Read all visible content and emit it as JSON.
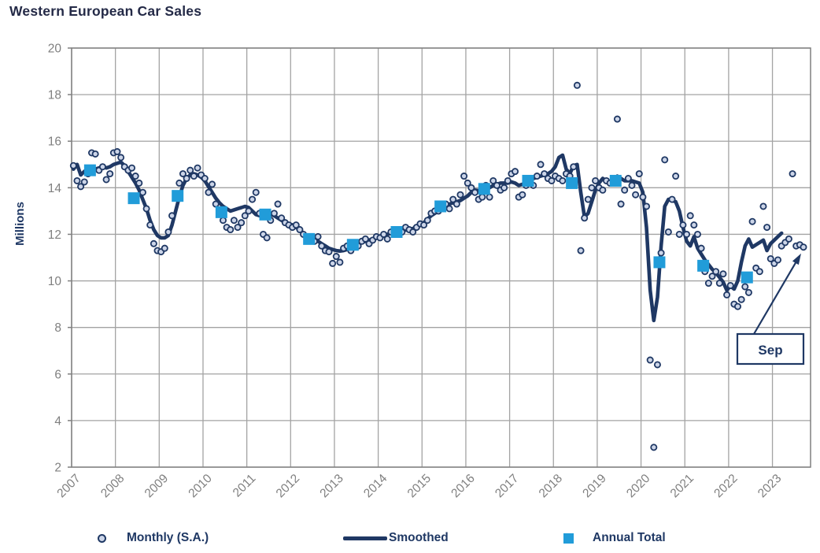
{
  "title": "Western European Car Sales",
  "y_axis": {
    "label": "Millions",
    "ticks": [
      20,
      18,
      16,
      14,
      12,
      10,
      8,
      6,
      4,
      2
    ]
  },
  "x_axis": {
    "years": [
      2007,
      2008,
      2009,
      2010,
      2011,
      2012,
      2013,
      2014,
      2015,
      2016,
      2017,
      2018,
      2019,
      2020,
      2021,
      2022,
      2023
    ]
  },
  "legend": [
    {
      "label": "Monthly (S.A.)",
      "marker": "circle"
    },
    {
      "label": "Smoothed",
      "marker": "line"
    },
    {
      "label": "Annual Total",
      "marker": "square"
    }
  ],
  "annotation": {
    "text": "Sep"
  },
  "colors": {
    "navy": "#1F3864",
    "square_blue": "#219CD9",
    "dot_fill": "#CCD5E8",
    "grid": "#A3A3A3",
    "border": "#7F7F7F",
    "tick_text": "#7F7F7F",
    "title_text": "#242A47"
  },
  "chart_data": {
    "type": "line",
    "title": "Western European Car Sales",
    "xlabel": "",
    "ylabel": "Millions",
    "ylim": [
      2,
      20
    ],
    "xlim": [
      2007,
      2023.9
    ],
    "grid": true,
    "legend_position": "bottom",
    "units": "millions (SAAR)",
    "start": {
      "year": 2007,
      "month": 1
    },
    "end": {
      "year": 2023,
      "month": 9
    },
    "series_names": [
      "Monthly (S.A.)",
      "Smoothed",
      "Annual Total"
    ],
    "monthly": [
      14.95,
      14.3,
      14.05,
      14.25,
      14.6,
      15.5,
      15.45,
      14.75,
      14.9,
      14.35,
      14.6,
      15.5,
      15.55,
      15.3,
      14.9,
      14.75,
      14.85,
      14.5,
      14.2,
      13.8,
      13.1,
      12.4,
      11.6,
      11.3,
      11.25,
      11.4,
      12.1,
      12.8,
      13.6,
      14.2,
      14.6,
      14.4,
      14.75,
      14.5,
      14.85,
      14.55,
      14.4,
      13.8,
      14.15,
      13.3,
      12.9,
      12.6,
      12.3,
      12.2,
      12.6,
      12.3,
      12.5,
      12.8,
      13.0,
      13.5,
      13.8,
      12.9,
      12.0,
      11.85,
      12.6,
      12.9,
      13.3,
      12.7,
      12.5,
      12.4,
      12.3,
      12.4,
      12.2,
      12.0,
      11.9,
      11.8,
      11.7,
      11.9,
      11.5,
      11.3,
      11.25,
      10.75,
      11.05,
      10.8,
      11.4,
      11.5,
      11.3,
      11.6,
      11.5,
      11.7,
      11.8,
      11.6,
      11.75,
      11.9,
      11.85,
      12.0,
      11.8,
      12.1,
      12.0,
      12.2,
      12.1,
      12.3,
      12.2,
      12.1,
      12.3,
      12.45,
      12.4,
      12.6,
      12.9,
      13.0,
      13.0,
      13.2,
      13.3,
      13.1,
      13.5,
      13.3,
      13.7,
      14.5,
      14.2,
      14.0,
      13.8,
      13.5,
      13.6,
      14.1,
      13.6,
      14.3,
      14.1,
      13.9,
      14.0,
      14.3,
      14.6,
      14.7,
      13.6,
      13.7,
      14.1,
      14.3,
      14.1,
      14.5,
      15.0,
      14.6,
      14.4,
      14.3,
      14.5,
      14.4,
      14.3,
      14.6,
      14.5,
      14.9,
      18.4,
      11.3,
      12.7,
      13.5,
      14.0,
      14.3,
      14.0,
      13.9,
      14.3,
      14.2,
      14.4,
      16.95,
      13.3,
      13.9,
      14.4,
      14.1,
      13.7,
      14.6,
      13.6,
      13.2,
      6.6,
      2.85,
      6.4,
      11.2,
      15.2,
      12.1,
      13.5,
      14.5,
      12.0,
      12.4,
      12.0,
      12.8,
      12.4,
      12.0,
      11.4,
      10.4,
      9.9,
      10.2,
      10.4,
      9.9,
      10.3,
      9.4,
      9.8,
      9.0,
      8.9,
      9.2,
      9.75,
      9.5,
      12.55,
      10.55,
      10.4,
      13.2,
      12.3,
      10.95,
      10.75,
      10.9,
      11.5,
      11.65,
      11.8,
      14.6,
      11.5,
      11.55,
      11.45
    ],
    "smoothed_end": {
      "year": 2023,
      "month": 3
    },
    "smoothed": [
      14.8,
      15.0,
      14.55,
      14.7,
      14.8,
      14.85,
      14.8,
      14.85,
      14.9,
      14.85,
      14.9,
      15.0,
      15.05,
      15.1,
      14.95,
      14.7,
      14.45,
      14.2,
      13.9,
      13.5,
      13.1,
      12.6,
      12.2,
      11.95,
      11.85,
      11.85,
      11.95,
      12.4,
      13.0,
      13.6,
      14.1,
      14.4,
      14.55,
      14.6,
      14.55,
      14.45,
      14.3,
      14.05,
      13.8,
      13.55,
      13.35,
      13.2,
      13.1,
      13.0,
      13.05,
      13.1,
      13.15,
      13.2,
      13.15,
      13.0,
      12.85,
      12.8,
      12.75,
      12.8,
      12.85,
      12.8,
      12.7,
      12.6,
      12.5,
      12.45,
      12.4,
      12.3,
      12.2,
      12.05,
      11.95,
      11.85,
      11.8,
      11.7,
      11.6,
      11.5,
      11.4,
      11.35,
      11.3,
      11.28,
      11.3,
      11.35,
      11.4,
      11.5,
      11.6,
      11.65,
      11.7,
      11.75,
      11.8,
      11.85,
      11.9,
      11.95,
      12.0,
      12.05,
      12.1,
      12.12,
      12.15,
      12.18,
      12.2,
      12.25,
      12.3,
      12.4,
      12.5,
      12.65,
      12.8,
      12.9,
      13.0,
      13.1,
      13.2,
      13.3,
      13.35,
      13.4,
      13.45,
      13.55,
      13.65,
      13.8,
      13.9,
      13.88,
      13.85,
      13.9,
      14.0,
      14.1,
      14.15,
      14.2,
      14.2,
      14.2,
      14.25,
      14.2,
      14.1,
      14.15,
      14.2,
      14.3,
      14.4,
      14.45,
      14.5,
      14.55,
      14.6,
      14.7,
      14.9,
      15.3,
      15.4,
      14.8,
      14.6,
      14.95,
      15.0,
      13.8,
      12.75,
      12.9,
      13.4,
      13.9,
      14.2,
      14.4,
      14.3,
      14.2,
      14.35,
      14.5,
      14.4,
      14.3,
      14.3,
      14.3,
      14.25,
      14.2,
      13.8,
      12.3,
      9.6,
      8.3,
      9.3,
      11.5,
      13.2,
      13.5,
      13.45,
      13.4,
      13.0,
      12.3,
      11.7,
      11.5,
      11.9,
      11.4,
      11.15,
      10.9,
      10.7,
      10.5,
      10.35,
      10.15,
      9.95,
      9.6,
      9.78,
      9.65,
      10.0,
      10.8,
      11.5,
      11.8,
      11.45,
      11.55,
      11.65,
      11.75,
      11.3,
      11.6,
      11.75,
      11.9,
      12.05
    ],
    "annual_totals": {
      "years": [
        2007,
        2008,
        2009,
        2010,
        2011,
        2012,
        2013,
        2014,
        2015,
        2016,
        2017,
        2018,
        2019,
        2020,
        2021,
        2022
      ],
      "values": [
        14.75,
        13.55,
        13.65,
        12.95,
        12.85,
        11.8,
        11.55,
        12.1,
        13.2,
        13.95,
        14.3,
        14.2,
        14.3,
        10.8,
        10.65,
        10.15
      ]
    },
    "annotation": {
      "text": "Sep",
      "points_to": "last monthly value (Sep 2023, 11.45)"
    }
  }
}
